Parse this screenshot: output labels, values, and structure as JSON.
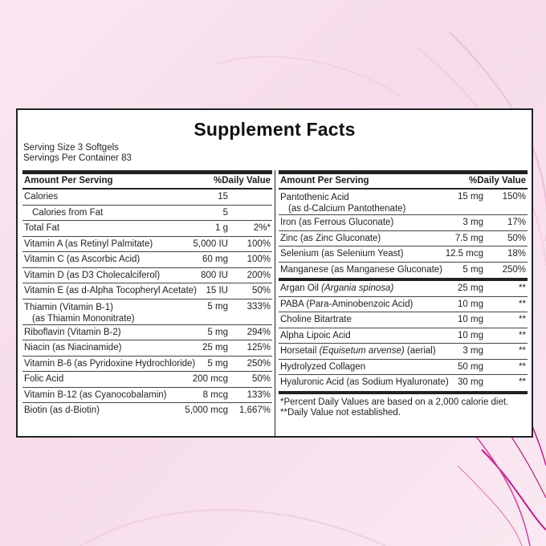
{
  "title": "Supplement Facts",
  "serving_size": "Serving Size 3 Softgels",
  "servings_per_container": "Servings Per Container 83",
  "headers": {
    "amount": "Amount Per Serving",
    "daily_value": "%Daily Value"
  },
  "left_rows": [
    {
      "name": "Calories",
      "amount": "15",
      "dv": ""
    },
    {
      "name": "Calories from Fat",
      "amount": "5",
      "dv": ""
    },
    {
      "name": "Total Fat",
      "amount": "1 g",
      "dv": "2%*"
    },
    {
      "name": "Vitamin A (as Retinyl Palmitate)",
      "amount": "5,000 IU",
      "dv": "100%"
    },
    {
      "name": "Vitamin C (as Ascorbic Acid)",
      "amount": "60 mg",
      "dv": "100%"
    },
    {
      "name": "Vitamin D (as D3 Cholecalciferol)",
      "amount": "800 IU",
      "dv": "200%"
    },
    {
      "name": "Vitamin E (as d-Alpha Tocopheryl Acetate)",
      "amount": "15 IU",
      "dv": "50%"
    },
    {
      "name": "Thiamin (Vitamin B-1)",
      "sub": "(as Thiamin Mononitrate)",
      "amount": "5 mg",
      "dv": "333%"
    },
    {
      "name": "Riboflavin (Vitamin B-2)",
      "amount": "5 mg",
      "dv": "294%"
    },
    {
      "name": "Niacin (as Niacinamide)",
      "amount": "25 mg",
      "dv": "125%"
    },
    {
      "name": "Vitamin B-6 (as Pyridoxine Hydrochloride)",
      "amount": "5 mg",
      "dv": "250%"
    },
    {
      "name": "Folic Acid",
      "amount": "200 mcg",
      "dv": "50%"
    },
    {
      "name": "Vitamin B-12 (as Cyanocobalamin)",
      "amount": "8 mcg",
      "dv": "133%"
    },
    {
      "name": "Biotin (as d-Biotin)",
      "amount": "5,000 mcg",
      "dv": "1,667%"
    }
  ],
  "right_rows": [
    {
      "name": "Pantothenic Acid",
      "sub": "(as d-Calcium Pantothenate)",
      "amount": "15 mg",
      "dv": "150%"
    },
    {
      "name": "Iron (as Ferrous Gluconate)",
      "amount": "3 mg",
      "dv": "17%"
    },
    {
      "name": "Zinc (as Zinc Gluconate)",
      "amount": "7.5 mg",
      "dv": "50%"
    },
    {
      "name": "Selenium (as Selenium Yeast)",
      "amount": "12.5 mcg",
      "dv": "18%"
    },
    {
      "name": "Manganese (as Manganese Gluconate)",
      "amount": "5 mg",
      "dv": "250%"
    }
  ],
  "right_rows_2": [
    {
      "name_pre": "Argan Oil ",
      "name_italic": "(Argania spinosa)",
      "name_post": "",
      "amount": "25 mg",
      "dv": "**"
    },
    {
      "name_pre": "PABA (Para-Aminobenzoic Acid)",
      "name_italic": "",
      "name_post": "",
      "amount": "10 mg",
      "dv": "**"
    },
    {
      "name_pre": "Choline Bitartrate",
      "name_italic": "",
      "name_post": "",
      "amount": "10 mg",
      "dv": "**"
    },
    {
      "name_pre": "Alpha Lipoic Acid",
      "name_italic": "",
      "name_post": "",
      "amount": "10 mg",
      "dv": "**"
    },
    {
      "name_pre": "Horsetail ",
      "name_italic": "(Equisetum arvense)",
      "name_post": " (aerial)",
      "amount": "3 mg",
      "dv": "**"
    },
    {
      "name_pre": "Hydrolyzed Collagen",
      "name_italic": "",
      "name_post": "",
      "amount": "50 mg",
      "dv": "**"
    },
    {
      "name_pre": "Hyaluronic Acid (as Sodium Hyaluronate)",
      "name_italic": "",
      "name_post": "",
      "amount": "30 mg",
      "dv": "**"
    }
  ],
  "footnotes": [
    "*Percent Daily Values are based on a 2,000 calorie diet.",
    "**Daily Value not established."
  ],
  "colors": {
    "background": "#f6dbe9",
    "accent_swirl": "#c2188f",
    "ink": "#1f1f1f"
  }
}
